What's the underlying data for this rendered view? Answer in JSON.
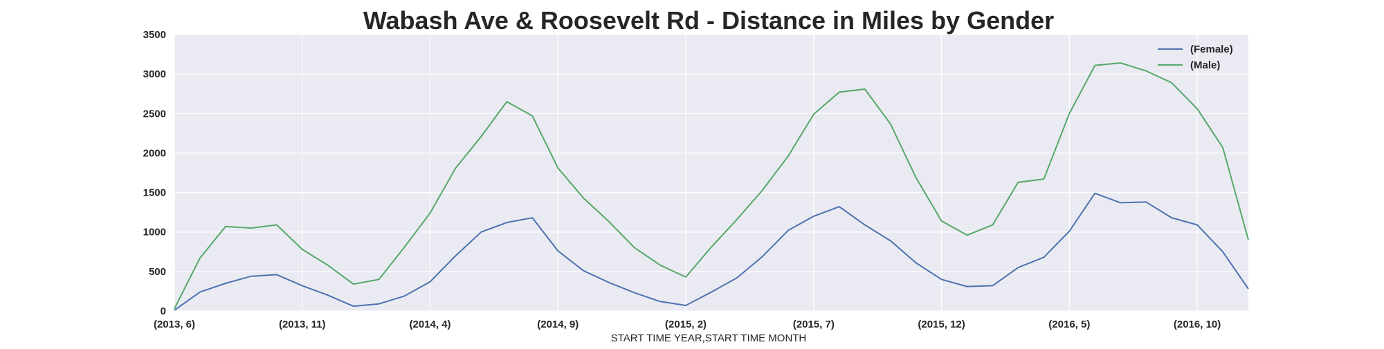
{
  "chart_data": {
    "type": "line",
    "title": "Wabash Ave & Roosevelt Rd - Distance in Miles by Gender",
    "xlabel": "START TIME YEAR,START TIME MONTH",
    "ylabel": "",
    "ylim": [
      0,
      3500
    ],
    "yticks": [
      0,
      500,
      1000,
      1500,
      2000,
      2500,
      3000,
      3500
    ],
    "x_tick_labels": [
      "(2013, 6)",
      "(2013, 11)",
      "(2014, 4)",
      "(2014, 9)",
      "(2015, 2)",
      "(2015, 7)",
      "(2015, 12)",
      "(2016, 5)",
      "(2016, 10)"
    ],
    "x": [
      "(2013, 6)",
      "(2013, 7)",
      "(2013, 8)",
      "(2013, 9)",
      "(2013, 10)",
      "(2013, 11)",
      "(2013, 12)",
      "(2014, 1)",
      "(2014, 2)",
      "(2014, 3)",
      "(2014, 4)",
      "(2014, 5)",
      "(2014, 6)",
      "(2014, 7)",
      "(2014, 8)",
      "(2014, 9)",
      "(2014, 10)",
      "(2014, 11)",
      "(2014, 12)",
      "(2015, 1)",
      "(2015, 2)",
      "(2015, 3)",
      "(2015, 4)",
      "(2015, 5)",
      "(2015, 6)",
      "(2015, 7)",
      "(2015, 8)",
      "(2015, 9)",
      "(2015, 10)",
      "(2015, 11)",
      "(2015, 12)",
      "(2016, 1)",
      "(2016, 2)",
      "(2016, 3)",
      "(2016, 4)",
      "(2016, 5)",
      "(2016, 6)",
      "(2016, 7)",
      "(2016, 8)",
      "(2016, 9)",
      "(2016, 10)",
      "(2016, 11)",
      "(2016, 12)"
    ],
    "series": [
      {
        "name": "(Female)",
        "color": "#4c72b0",
        "values": [
          10,
          240,
          350,
          440,
          460,
          320,
          200,
          60,
          90,
          190,
          370,
          700,
          1000,
          1120,
          1180,
          760,
          510,
          360,
          230,
          120,
          70,
          240,
          420,
          690,
          1020,
          1200,
          1320,
          1090,
          890,
          610,
          400,
          310,
          320,
          550,
          680,
          1010,
          1490,
          1370,
          1380,
          1180,
          1090,
          750,
          280
        ]
      },
      {
        "name": "(Male)",
        "color": "#55a868",
        "values": [
          30,
          670,
          1070,
          1050,
          1090,
          780,
          580,
          340,
          400,
          810,
          1240,
          1810,
          2210,
          2650,
          2470,
          1810,
          1430,
          1130,
          800,
          580,
          430,
          810,
          1160,
          1530,
          1960,
          2490,
          2770,
          2810,
          2370,
          1690,
          1140,
          960,
          1090,
          1630,
          1670,
          2500,
          3110,
          3140,
          3040,
          2890,
          2560,
          2070,
          900
        ]
      }
    ],
    "grid": true,
    "legend_position": "top-right",
    "background_color": "#eaeaf2",
    "grid_color": "#ffffff"
  }
}
